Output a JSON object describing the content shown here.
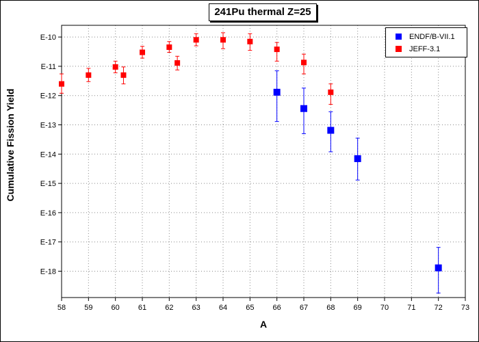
{
  "chart_data": {
    "type": "scatter",
    "title": "241Pu thermal Z=25",
    "xlabel": "A",
    "ylabel": "Cumulative Fission Yield",
    "xlim": [
      58,
      73
    ],
    "ylim_exponent": [
      -18.9,
      -9.6
    ],
    "yscale": "log",
    "grid": true,
    "legend_position": "top-right",
    "x_ticks": [
      "58",
      "59",
      "60",
      "61",
      "62",
      "63",
      "64",
      "65",
      "66",
      "67",
      "68",
      "69",
      "70",
      "71",
      "72",
      "73"
    ],
    "y_ticks": [
      "E-10",
      "E-11",
      "E-12",
      "E-13",
      "E-14",
      "E-15",
      "E-16",
      "E-17",
      "E-18"
    ],
    "series": [
      {
        "name": "ENDF/B-VII.1",
        "color": "#0000ff",
        "points": [
          {
            "x": 66,
            "y": 1.3e-12,
            "y_low": 1.3e-13,
            "y_high": 7e-12
          },
          {
            "x": 67,
            "y": 3.6e-13,
            "y_low": 5e-14,
            "y_high": 1.8e-12
          },
          {
            "x": 68,
            "y": 6.5e-14,
            "y_low": 1.2e-14,
            "y_high": 2.8e-13
          },
          {
            "x": 69,
            "y": 7e-15,
            "y_low": 1.3e-15,
            "y_high": 3.5e-14
          },
          {
            "x": 72,
            "y": 1.3e-18,
            "y_low": 1.8e-19,
            "y_high": 6.5e-18
          }
        ]
      },
      {
        "name": "JEFF-3.1",
        "color": "#ff0000",
        "points": [
          {
            "x": 58,
            "y": 2.5e-12,
            "y_low": 1.2e-12,
            "y_high": 5.5e-12
          },
          {
            "x": 59,
            "y": 5e-12,
            "y_low": 3e-12,
            "y_high": 8.5e-12
          },
          {
            "x": 60,
            "y": 9.5e-12,
            "y_low": 6e-12,
            "y_high": 1.5e-11
          },
          {
            "x": 60.3,
            "y": 5e-12,
            "y_low": 2.5e-12,
            "y_high": 9.5e-12
          },
          {
            "x": 61,
            "y": 3e-11,
            "y_low": 1.9e-11,
            "y_high": 4.8e-11
          },
          {
            "x": 62,
            "y": 4.5e-11,
            "y_low": 3e-11,
            "y_high": 7e-11
          },
          {
            "x": 62.3,
            "y": 1.3e-11,
            "y_low": 7.5e-12,
            "y_high": 2.2e-11
          },
          {
            "x": 63,
            "y": 8e-11,
            "y_low": 5e-11,
            "y_high": 1.3e-10
          },
          {
            "x": 64,
            "y": 8e-11,
            "y_low": 4e-11,
            "y_high": 1.4e-10
          },
          {
            "x": 65,
            "y": 7e-11,
            "y_low": 3.5e-11,
            "y_high": 1.3e-10
          },
          {
            "x": 66,
            "y": 3.8e-11,
            "y_low": 1.5e-11,
            "y_high": 6.5e-11
          },
          {
            "x": 67,
            "y": 1.35e-11,
            "y_low": 5.5e-12,
            "y_high": 2.6e-11
          },
          {
            "x": 68,
            "y": 1.3e-12,
            "y_low": 5e-13,
            "y_high": 2.5e-12
          }
        ]
      }
    ]
  }
}
